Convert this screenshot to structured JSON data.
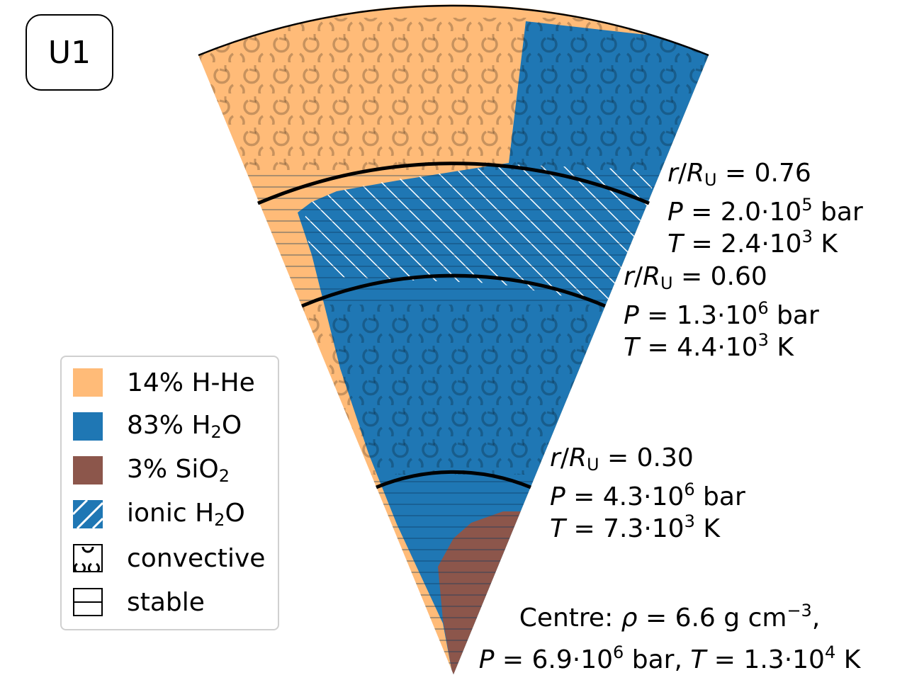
{
  "model_tag": "U1",
  "legend": {
    "items": [
      {
        "id": "hhe",
        "text": "14% H-He",
        "color": "#ffbb78"
      },
      {
        "id": "h2o",
        "text_main": "83% H",
        "text_sub": "2",
        "text_end": "O",
        "color": "#1f77b4"
      },
      {
        "id": "sio2",
        "text_main": "3% SiO",
        "text_sub": "2",
        "text_end": "",
        "color": "#8c564b"
      },
      {
        "id": "ionic",
        "text_main": "ionic H",
        "text_sub": "2",
        "text_end": "O",
        "color": "#1f77b4"
      },
      {
        "id": "conv",
        "text": "convective"
      },
      {
        "id": "stable",
        "text": "stable"
      }
    ]
  },
  "boundaries": [
    {
      "r_over_R": 0.76,
      "r_value": "0.76",
      "P_mant": "2.0",
      "P_exp": "5",
      "P_unit": "bar",
      "T_mant": "2.4",
      "T_exp": "3",
      "T_unit": "K"
    },
    {
      "r_over_R": 0.6,
      "r_value": "0.60",
      "P_mant": "1.3",
      "P_exp": "6",
      "P_unit": "bar",
      "T_mant": "4.4",
      "T_exp": "3",
      "T_unit": "K"
    },
    {
      "r_over_R": 0.3,
      "r_value": "0.30",
      "P_mant": "4.3",
      "P_exp": "6",
      "P_unit": "bar",
      "T_mant": "7.3",
      "T_exp": "3",
      "T_unit": "K"
    }
  ],
  "label_symbols": {
    "r": "r",
    "R": "R",
    "R_sub": "U",
    "P": "P",
    "T": "T",
    "eq": " = ",
    "times10": "·10"
  },
  "centre": {
    "prefix": "Centre: ",
    "rho_symbol": "ρ",
    "rho_value": "6.6 g cm",
    "rho_exp": "−3",
    "rho_end": ",",
    "P_mant": "6.9",
    "P_exp": "6",
    "P_unit": "bar,",
    "T_mant": "1.3",
    "T_exp": "4",
    "T_unit": "K"
  },
  "colors": {
    "hhe": "#ffbb78",
    "h2o": "#1f77b4",
    "sio2": "#8c564b",
    "hatch": "#ffffff",
    "pattern": "#0d3a5c"
  }
}
